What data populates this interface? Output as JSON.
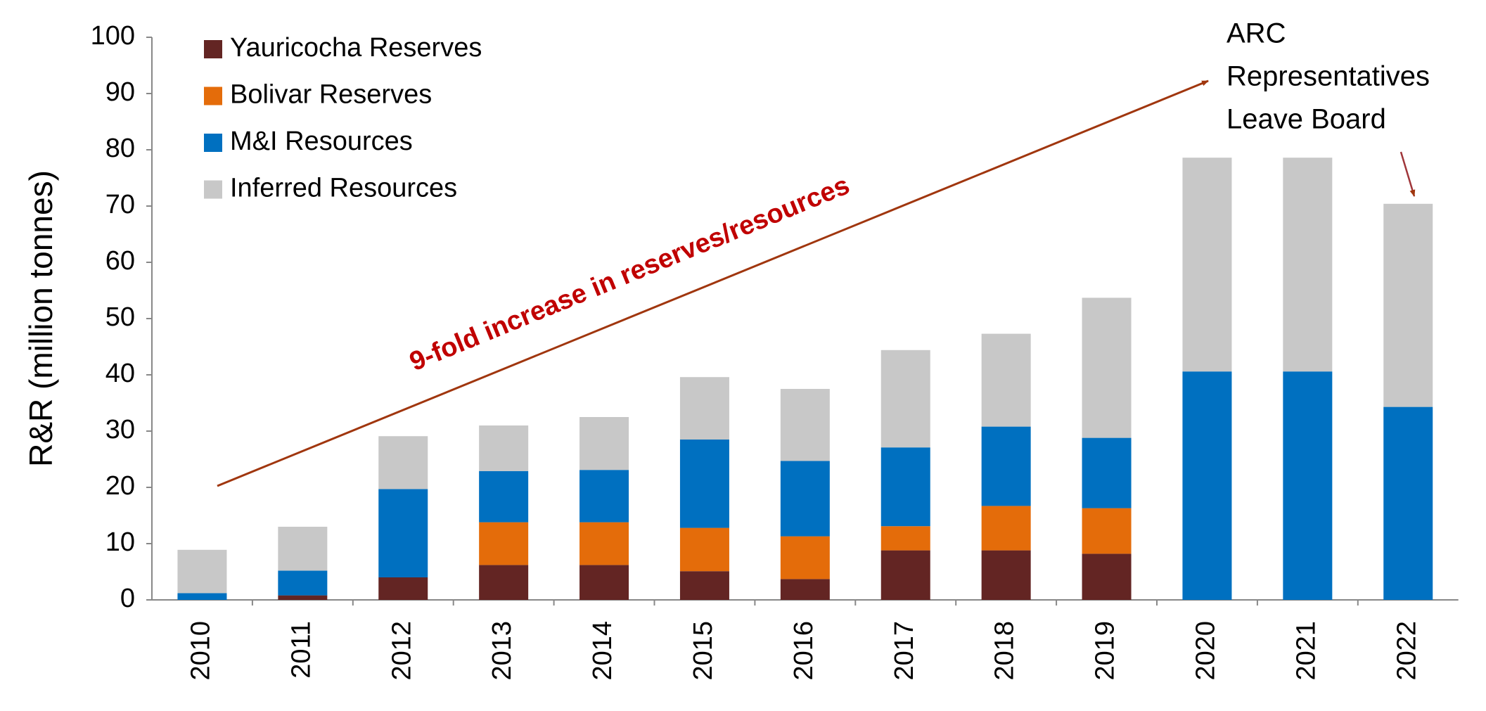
{
  "chart_data": {
    "type": "stacked_bar",
    "y_axis_label": "R&R (million tonnes)",
    "categories": [
      "2010",
      "2011",
      "2012",
      "2013",
      "2014",
      "2015",
      "2016",
      "2017",
      "2018",
      "2019",
      "2020",
      "2021",
      "2022"
    ],
    "series": [
      {
        "name": "Yauricocha Reserves",
        "color": "#632523",
        "values": [
          0,
          0.8,
          4.0,
          6.2,
          6.2,
          5.1,
          3.7,
          8.8,
          8.8,
          8.2,
          0,
          0,
          0
        ]
      },
      {
        "name": "Bolivar Reserves",
        "color": "#e46c0a",
        "values": [
          0,
          0,
          0,
          7.6,
          7.6,
          7.7,
          7.6,
          4.3,
          7.9,
          8.1,
          0,
          0,
          0
        ]
      },
      {
        "name": "M&I Resources",
        "color": "#0070c0",
        "values": [
          1.2,
          4.4,
          15.7,
          9.1,
          9.3,
          15.7,
          13.4,
          14.0,
          14.1,
          12.5,
          40.6,
          40.6,
          34.3
        ]
      },
      {
        "name": "Inferred Resources",
        "color": "#c8c8c8",
        "values": [
          7.7,
          7.8,
          9.4,
          8.1,
          9.4,
          11.1,
          12.8,
          17.3,
          16.5,
          24.9,
          38.0,
          38.0,
          36.1
        ]
      }
    ],
    "ylim": [
      0,
      100
    ],
    "yticks": [
      0,
      10,
      20,
      30,
      40,
      50,
      60,
      70,
      80,
      90,
      100
    ],
    "growth_annotation": "9-fold increase in reserves/resources",
    "board_annotation": [
      "ARC",
      "Representatives",
      "Leave Board"
    ],
    "annotation_color": "#c00000"
  }
}
